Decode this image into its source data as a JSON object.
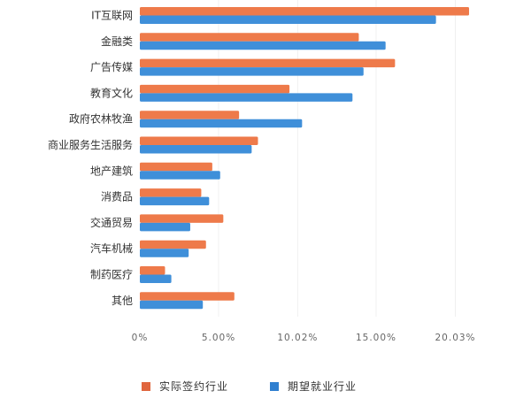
{
  "chart_data": {
    "type": "bar",
    "orientation": "horizontal",
    "categories": [
      "IT互联网",
      "金融类",
      "广告传媒",
      "教育文化",
      "政府农林牧渔",
      "商业服务生活服务",
      "地产建筑",
      "消费品",
      "交通贸易",
      "汽车机械",
      "制药医疗",
      "其他"
    ],
    "series": [
      {
        "name": "实际签约行业",
        "color": "#ee7a4a",
        "values": [
          20.9,
          13.9,
          16.2,
          9.5,
          6.3,
          7.5,
          4.6,
          3.9,
          5.3,
          4.2,
          1.6,
          6.0
        ]
      },
      {
        "name": "期望就业行业",
        "color": "#3f8fd9",
        "values": [
          18.8,
          15.6,
          14.2,
          13.5,
          10.3,
          7.1,
          5.1,
          4.4,
          3.2,
          3.1,
          2.0,
          4.0
        ]
      }
    ],
    "x_ticks": [
      "0%",
      "5.00%",
      "10.02%",
      "15.00%",
      "20.03%"
    ],
    "x_tick_values": [
      0,
      5.0,
      10.02,
      15.0,
      20.03
    ],
    "xlim": [
      0,
      22
    ],
    "grid": true,
    "legend_position": "bottom"
  }
}
